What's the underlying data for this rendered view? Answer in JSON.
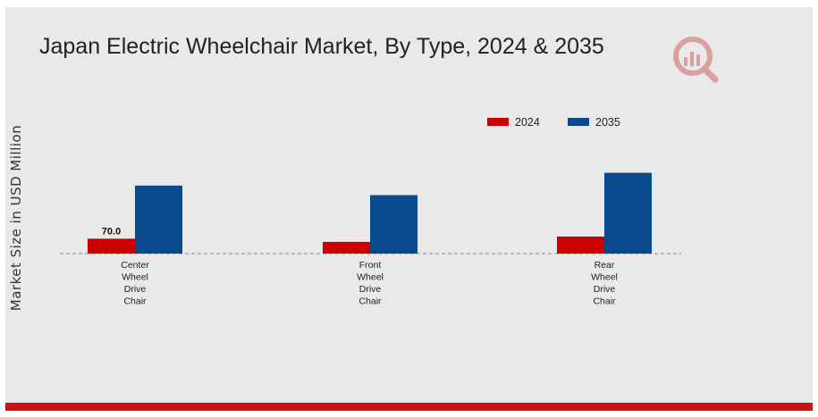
{
  "colors": {
    "background": "#e9e9e9",
    "bar_2024": "#cc0000",
    "bar_2035": "#0a4a8c",
    "bottom_bar": "#cc1111",
    "logo": "#d9a0a0"
  },
  "logo_icon": "chart-magnifier-logo-icon",
  "chart_data": {
    "type": "bar",
    "title": "Japan Electric Wheelchair Market, By Type, 2024 & 2035",
    "xlabel": "",
    "ylabel": "Market Size in USD Million",
    "categories": [
      [
        "Center",
        "Wheel",
        "Drive",
        "Chair"
      ],
      [
        "Front",
        "Wheel",
        "Drive",
        "Chair"
      ],
      [
        "Rear",
        "Wheel",
        "Drive",
        "Chair"
      ]
    ],
    "series": [
      {
        "name": "2024",
        "color": "#cc0000",
        "values": [
          70.0,
          55.0,
          80.0
        ]
      },
      {
        "name": "2035",
        "color": "#0a4a8c",
        "values": [
          320.0,
          275.0,
          380.0
        ]
      }
    ],
    "data_labels": [
      {
        "series": 0,
        "index": 0,
        "text": "70.0"
      }
    ],
    "ylim": [
      0,
      420
    ],
    "legend_position": "top-right",
    "grid": false
  }
}
